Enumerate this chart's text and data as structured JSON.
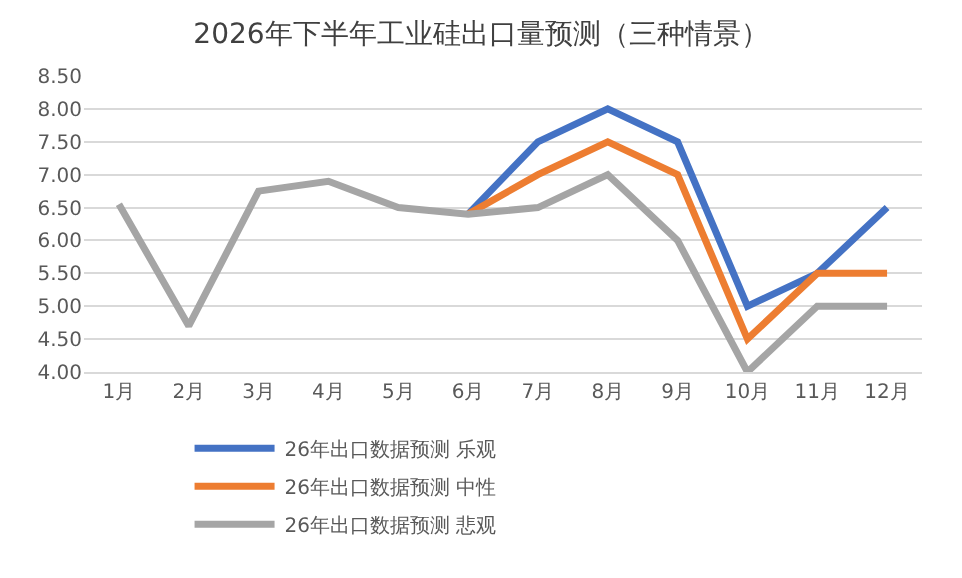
{
  "chart_data": {
    "type": "line",
    "title": "2026年下半年工业硅出口量预测（三种情景）",
    "categories": [
      "1月",
      "2月",
      "3月",
      "4月",
      "5月",
      "6月",
      "7月",
      "8月",
      "9月",
      "10月",
      "11月",
      "12月"
    ],
    "series": [
      {
        "name": "26年出口数据预测 乐观",
        "color": "#4472c4",
        "values": [
          null,
          null,
          null,
          null,
          null,
          6.4,
          7.5,
          8.0,
          7.5,
          5.0,
          5.5,
          6.5
        ]
      },
      {
        "name": "26年出口数据预测 中性",
        "color": "#ed7d31",
        "values": [
          null,
          null,
          null,
          null,
          null,
          6.4,
          7.0,
          7.5,
          7.0,
          4.5,
          5.5,
          5.5
        ]
      },
      {
        "name": "26年出口数据预测 悲观",
        "color": "#a5a5a5",
        "values": [
          6.55,
          4.7,
          6.75,
          6.9,
          6.5,
          6.4,
          6.5,
          7.0,
          6.0,
          4.0,
          5.0,
          5.0
        ]
      }
    ],
    "ylim": [
      4,
      8.5
    ],
    "yticks": [
      {
        "value": 4,
        "label": "4.00"
      },
      {
        "value": 4.5,
        "label": "4.50"
      },
      {
        "value": 5,
        "label": "5.00"
      },
      {
        "value": 5.5,
        "label": "5.50"
      },
      {
        "value": 6,
        "label": "6.00"
      },
      {
        "value": 6.5,
        "label": "6.50"
      },
      {
        "value": 7,
        "label": "7.00"
      },
      {
        "value": 7.5,
        "label": "7.50"
      },
      {
        "value": 8,
        "label": "8.00"
      },
      {
        "value": 8.5,
        "label": "8.50"
      }
    ],
    "grid": "y",
    "legend": "bottom",
    "marker": "none",
    "line_style": "solid"
  }
}
